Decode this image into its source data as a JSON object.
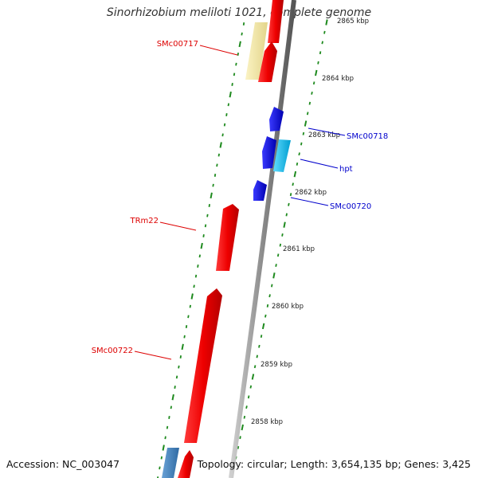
{
  "title": "Sinorhizobium meliloti 1021, complete genome",
  "footer": {
    "accession": "Accession: NC_003047",
    "summary": "Topology: circular; Length: 3,654,135 bp; Genes: 3,425"
  },
  "scale_ticks": [
    {
      "kbp": 2865,
      "label": "2865 kbp"
    },
    {
      "kbp": 2864,
      "label": "2864 kbp"
    },
    {
      "kbp": 2863,
      "label": "2863 kbp"
    },
    {
      "kbp": 2862,
      "label": "2862 kbp"
    },
    {
      "kbp": 2861,
      "label": "2861 kbp"
    },
    {
      "kbp": 2860,
      "label": "2860 kbp"
    },
    {
      "kbp": 2859,
      "label": "2859 kbp"
    },
    {
      "kbp": 2858,
      "label": "2858 kbp"
    }
  ],
  "gene_labels": [
    {
      "name": "SMc00717",
      "color": "#dd0000"
    },
    {
      "name": "SMc00718",
      "color": "#0000cc"
    },
    {
      "name": "hpt",
      "color": "#0000cc"
    },
    {
      "name": "SMc00720",
      "color": "#0000cc"
    },
    {
      "name": "TRm22",
      "color": "#dd0000"
    },
    {
      "name": "SMc00722",
      "color": "#dd0000"
    }
  ],
  "colors": {
    "forward_gene": "#ee0000",
    "reverse_gene": "#0000ee",
    "rna_gene": "#00bbee",
    "other_gene": "#f3e7a6",
    "steel_gene": "#4a86c0",
    "backbone": "#8c8c8c",
    "ticks": "#1e8a1e"
  }
}
